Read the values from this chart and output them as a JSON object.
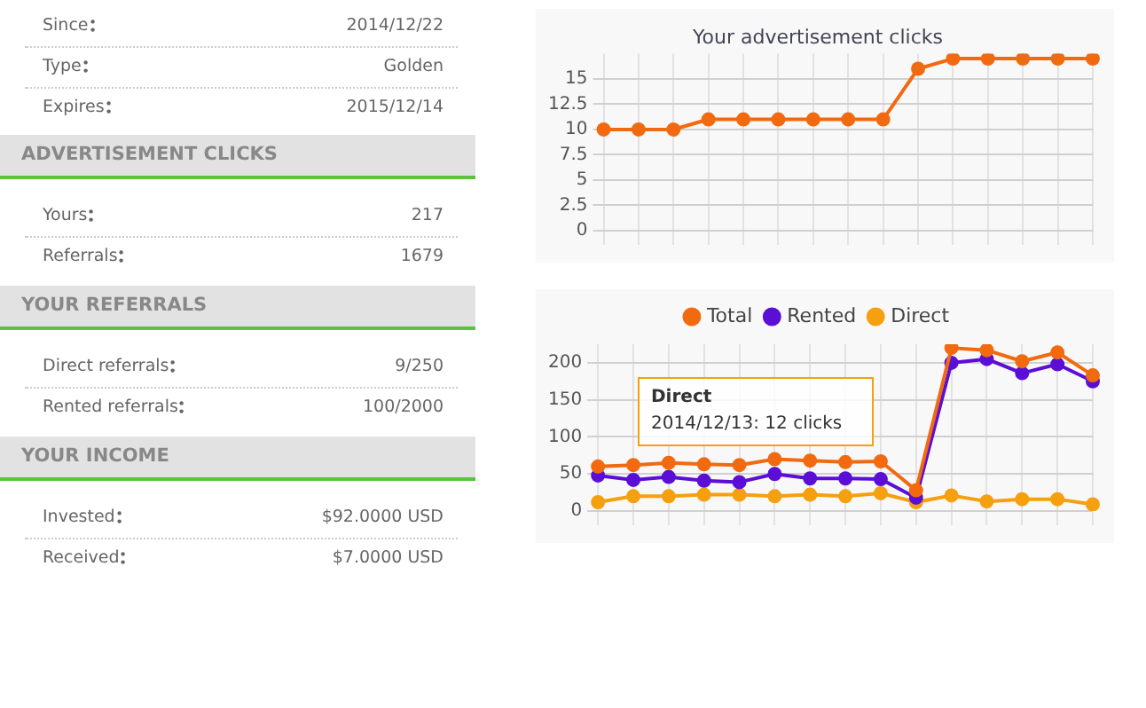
{
  "chart_data": [
    {
      "type": "other",
      "categories": [
        "Since",
        "Type",
        "Expires"
      ],
      "value_labels": [
        "2014/12/22",
        "Golden",
        "2015/12/14"
      ]
    },
    {
      "type": "other",
      "title": "ADVERTISEMENT CLICKS",
      "categories": [
        "Yours",
        "Referrals"
      ],
      "value_labels": [
        "217",
        "1679"
      ]
    },
    {
      "type": "other",
      "title": "YOUR REFERRALS",
      "categories": [
        "Direct referrals",
        "Rented referrals"
      ],
      "value_labels": [
        "9/250",
        "100/2000"
      ]
    },
    {
      "type": "other",
      "title": "YOUR INCOME",
      "categories": [
        "Invested",
        "Received"
      ],
      "value_labels": [
        "$92.0000 USD",
        "$7.0000 USD"
      ]
    },
    {
      "type": "line",
      "title": "Your advertisement clicks",
      "categories": [
        null,
        null,
        null,
        null,
        null,
        null,
        null,
        null,
        null,
        null,
        null,
        null,
        null,
        null,
        null
      ],
      "values": [
        10,
        10,
        10,
        11,
        11,
        11,
        11,
        11,
        11,
        16,
        17,
        17,
        17,
        17,
        17
      ],
      "color": "#f26a10",
      "ylim": [
        0,
        17.5
      ],
      "yticks": [
        0,
        2.5,
        5,
        7.5,
        10,
        12.5,
        15
      ],
      "grid": true,
      "tick_labels": "y",
      "marker": "circle",
      "legend": false
    },
    {
      "type": "line",
      "categories": [
        null,
        null,
        null,
        null,
        null,
        null,
        null,
        null,
        null,
        null,
        null,
        null,
        null,
        null,
        null
      ],
      "series": [
        {
          "name": "Total",
          "color": "#f26a10",
          "values": [
            60,
            62,
            65,
            63,
            62,
            70,
            68,
            66,
            67,
            28,
            220,
            217,
            202,
            214,
            183
          ]
        },
        {
          "name": "Rented",
          "color": "#5b0fd6",
          "values": [
            48,
            42,
            46,
            41,
            39,
            50,
            44,
            44,
            43,
            18,
            200,
            205,
            186,
            198,
            175
          ]
        },
        {
          "name": "Direct",
          "color": "#f5a00f",
          "values": [
            12,
            20,
            20,
            22,
            22,
            20,
            22,
            20,
            24,
            12,
            21,
            13,
            16,
            16,
            9
          ]
        }
      ],
      "ylim": [
        0,
        225
      ],
      "yticks": [
        0,
        50,
        100,
        150,
        200
      ],
      "grid": true,
      "tick_labels": "y",
      "marker": "circle",
      "legend": "top",
      "annotations": [
        "Direct\n2014/12/13: 12 clicks"
      ]
    }
  ]
}
